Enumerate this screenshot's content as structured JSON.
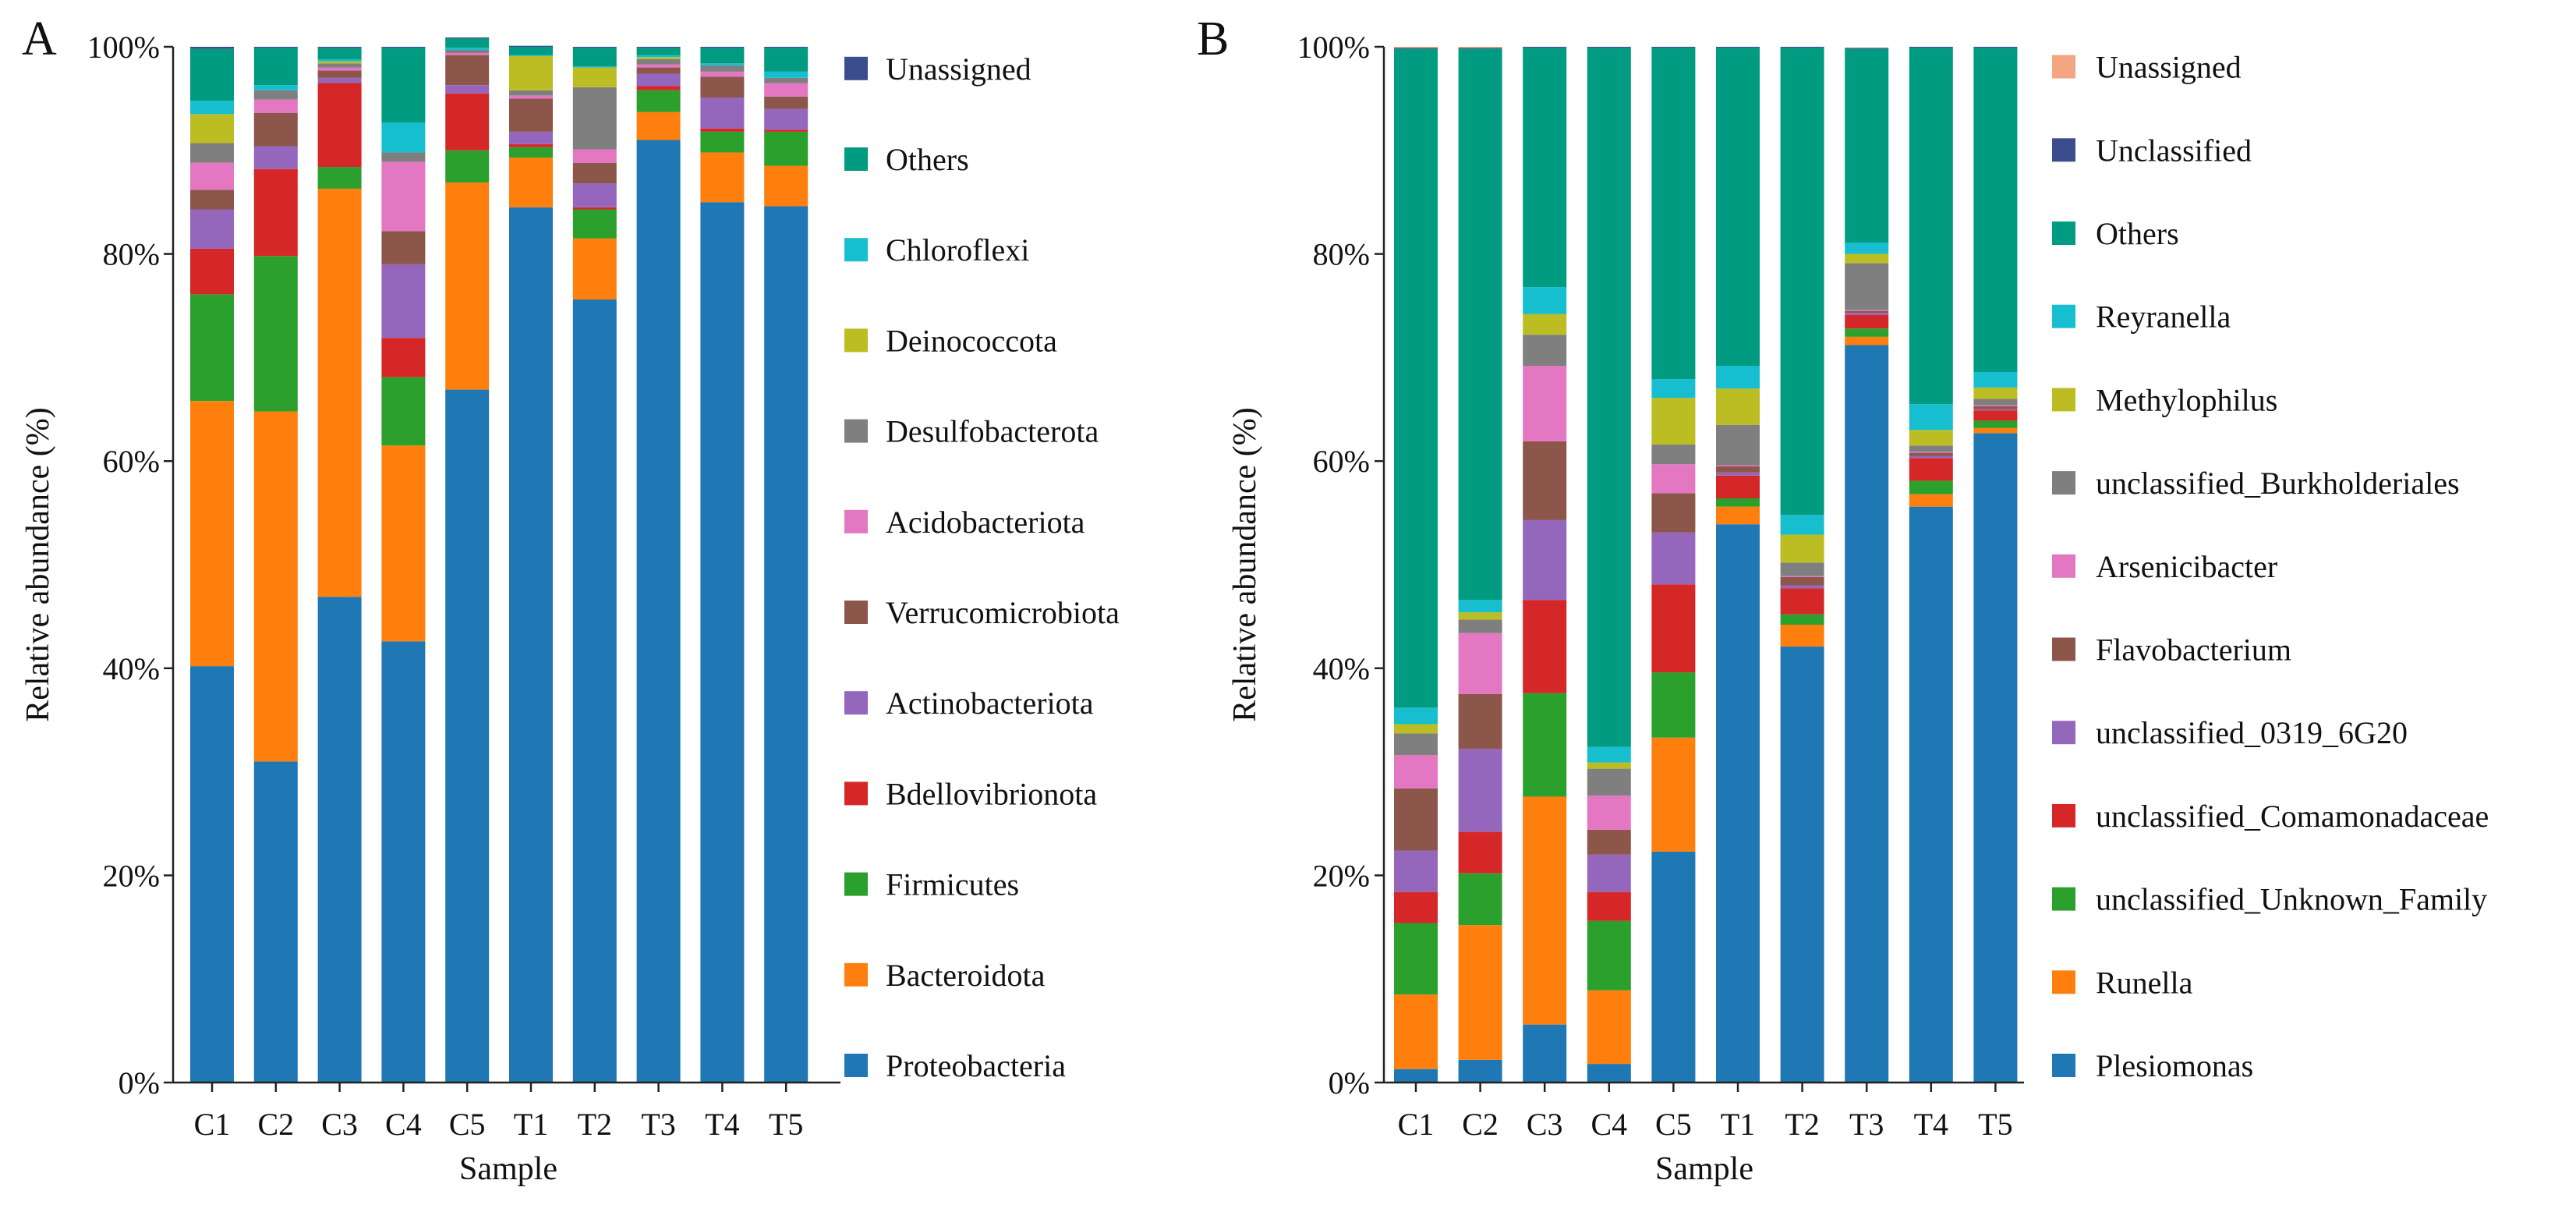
{
  "chart_data": [
    {
      "panel_label": "A",
      "type": "bar",
      "stacked": true,
      "title": "",
      "xlabel": "Sample",
      "ylabel": "Relative abundance (%)",
      "ylim": [
        0,
        100
      ],
      "yticks": [
        "0%",
        "20%",
        "40%",
        "60%",
        "80%",
        "100%"
      ],
      "categories": [
        "C1",
        "C2",
        "C3",
        "C4",
        "C5",
        "T1",
        "T2",
        "T3",
        "T4",
        "T5"
      ],
      "series": [
        {
          "name": "Proteobacteria",
          "color": "#1f77b4",
          "values": [
            40.2,
            31.0,
            46.9,
            42.6,
            66.9,
            84.5,
            75.6,
            91.0,
            85.0,
            84.6
          ]
        },
        {
          "name": "Bacteroidota",
          "color": "#ff7f0e",
          "values": [
            25.6,
            33.8,
            39.4,
            18.9,
            20.0,
            4.8,
            5.9,
            2.7,
            4.8,
            3.9
          ]
        },
        {
          "name": "Firmicutes",
          "color": "#2ca02c",
          "values": [
            10.3,
            15.0,
            2.1,
            6.6,
            3.1,
            1.0,
            2.8,
            2.1,
            2.0,
            3.3
          ]
        },
        {
          "name": "Bdellovibrionota",
          "color": "#d62728",
          "values": [
            4.4,
            8.4,
            8.1,
            3.8,
            5.5,
            0.3,
            0.2,
            0.4,
            0.3,
            0.2
          ]
        },
        {
          "name": "Actinobacteriota",
          "color": "#9467bd",
          "values": [
            3.8,
            2.2,
            0.5,
            7.1,
            0.8,
            1.2,
            2.3,
            1.2,
            3.0,
            2.0
          ]
        },
        {
          "name": "Verrucomicrobiota",
          "color": "#8c564b",
          "values": [
            1.9,
            3.2,
            0.7,
            3.2,
            2.9,
            3.2,
            2.0,
            0.6,
            2.0,
            1.2
          ]
        },
        {
          "name": "Acidobacteriota",
          "color": "#e377c2",
          "values": [
            2.6,
            1.3,
            0.3,
            6.7,
            0.2,
            0.3,
            1.3,
            0.3,
            0.5,
            1.3
          ]
        },
        {
          "name": "Desulfobacterota",
          "color": "#7f7f7f",
          "values": [
            1.9,
            0.9,
            0.4,
            0.9,
            0.3,
            0.5,
            6.0,
            0.5,
            0.6,
            0.5
          ]
        },
        {
          "name": "Deinococcota",
          "color": "#bcbd22",
          "values": [
            2.8,
            0.0,
            0.2,
            0.0,
            0.0,
            3.3,
            1.9,
            0.2,
            0.0,
            0.0
          ]
        },
        {
          "name": "Chloroflexi",
          "color": "#17becf",
          "values": [
            1.3,
            0.5,
            0.2,
            2.9,
            0.2,
            0.1,
            0.1,
            0.2,
            0.2,
            0.6
          ]
        },
        {
          "name": "Others",
          "color": "#009b80",
          "values": [
            5.0,
            3.6,
            1.1,
            7.2,
            0.9,
            0.8,
            1.8,
            0.7,
            1.5,
            2.3
          ]
        },
        {
          "name": "Unassigned",
          "color": "#3b4d8c",
          "values": [
            0.2,
            0.1,
            0.1,
            0.1,
            0.1,
            0.1,
            0.1,
            0.1,
            0.1,
            0.1
          ]
        }
      ]
    },
    {
      "panel_label": "B",
      "type": "bar",
      "stacked": true,
      "title": "",
      "xlabel": "Sample",
      "ylabel": "Relative abundance (%)",
      "ylim": [
        0,
        100
      ],
      "yticks": [
        "0%",
        "20%",
        "40%",
        "60%",
        "80%",
        "100%"
      ],
      "categories": [
        "C1",
        "C2",
        "C3",
        "C4",
        "C5",
        "T1",
        "T2",
        "T3",
        "T4",
        "T5"
      ],
      "series": [
        {
          "name": "Plesiomonas",
          "color": "#1f77b4",
          "values": [
            1.3,
            2.2,
            5.6,
            1.8,
            22.3,
            53.9,
            42.1,
            71.2,
            55.6,
            62.7
          ]
        },
        {
          "name": "Runella",
          "color": "#ff7f0e",
          "values": [
            7.2,
            13.0,
            22.0,
            7.1,
            11.0,
            1.7,
            2.1,
            0.8,
            1.2,
            0.5
          ]
        },
        {
          "name": "unclassified_Unknown_Family",
          "color": "#2ca02c",
          "values": [
            6.9,
            5.0,
            10.0,
            6.7,
            6.3,
            0.8,
            1.0,
            0.8,
            1.3,
            0.7
          ]
        },
        {
          "name": "unclassified_Comamonadaceae",
          "color": "#d62728",
          "values": [
            3.0,
            4.0,
            9.0,
            2.8,
            8.5,
            2.2,
            2.5,
            1.3,
            2.2,
            1.0
          ]
        },
        {
          "name": "unclassified_0319_6G20",
          "color": "#9467bd",
          "values": [
            4.0,
            8.0,
            7.7,
            3.6,
            5.0,
            0.3,
            0.3,
            0.2,
            0.2,
            0.1
          ]
        },
        {
          "name": "Flavobacterium",
          "color": "#8c564b",
          "values": [
            6.0,
            5.3,
            7.6,
            2.4,
            3.8,
            0.6,
            0.8,
            0.2,
            0.3,
            0.3
          ]
        },
        {
          "name": "Arsenicibacter",
          "color": "#e377c2",
          "values": [
            3.2,
            5.9,
            7.3,
            3.3,
            2.8,
            0.1,
            0.1,
            0.1,
            0.1,
            0.1
          ]
        },
        {
          "name": "unclassified_Burkholderiales",
          "color": "#7f7f7f",
          "values": [
            2.1,
            1.3,
            3.0,
            2.6,
            1.9,
            3.9,
            1.3,
            4.5,
            0.6,
            0.6
          ]
        },
        {
          "name": "Methylophilus",
          "color": "#bcbd22",
          "values": [
            0.9,
            0.7,
            2.0,
            0.6,
            4.5,
            3.5,
            2.7,
            0.9,
            1.5,
            1.1
          ]
        },
        {
          "name": "Reyranella",
          "color": "#17becf",
          "values": [
            1.6,
            1.2,
            2.6,
            1.5,
            1.8,
            2.2,
            1.9,
            1.1,
            2.5,
            1.5
          ]
        },
        {
          "name": "Others",
          "color": "#009b80",
          "values": [
            63.6,
            53.2,
            23.1,
            67.5,
            32.0,
            30.7,
            45.1,
            18.7,
            34.4,
            31.3
          ]
        },
        {
          "name": "Unclassified",
          "color": "#3b4d8c",
          "values": [
            0.1,
            0.1,
            0.1,
            0.1,
            0.1,
            0.1,
            0.1,
            0.1,
            0.1,
            0.1
          ]
        },
        {
          "name": "Unassigned",
          "color": "#f4a582",
          "values": [
            0.1,
            0.1,
            0.0,
            0.0,
            0.0,
            0.0,
            0.0,
            0.0,
            0.0,
            0.0
          ]
        }
      ]
    }
  ]
}
